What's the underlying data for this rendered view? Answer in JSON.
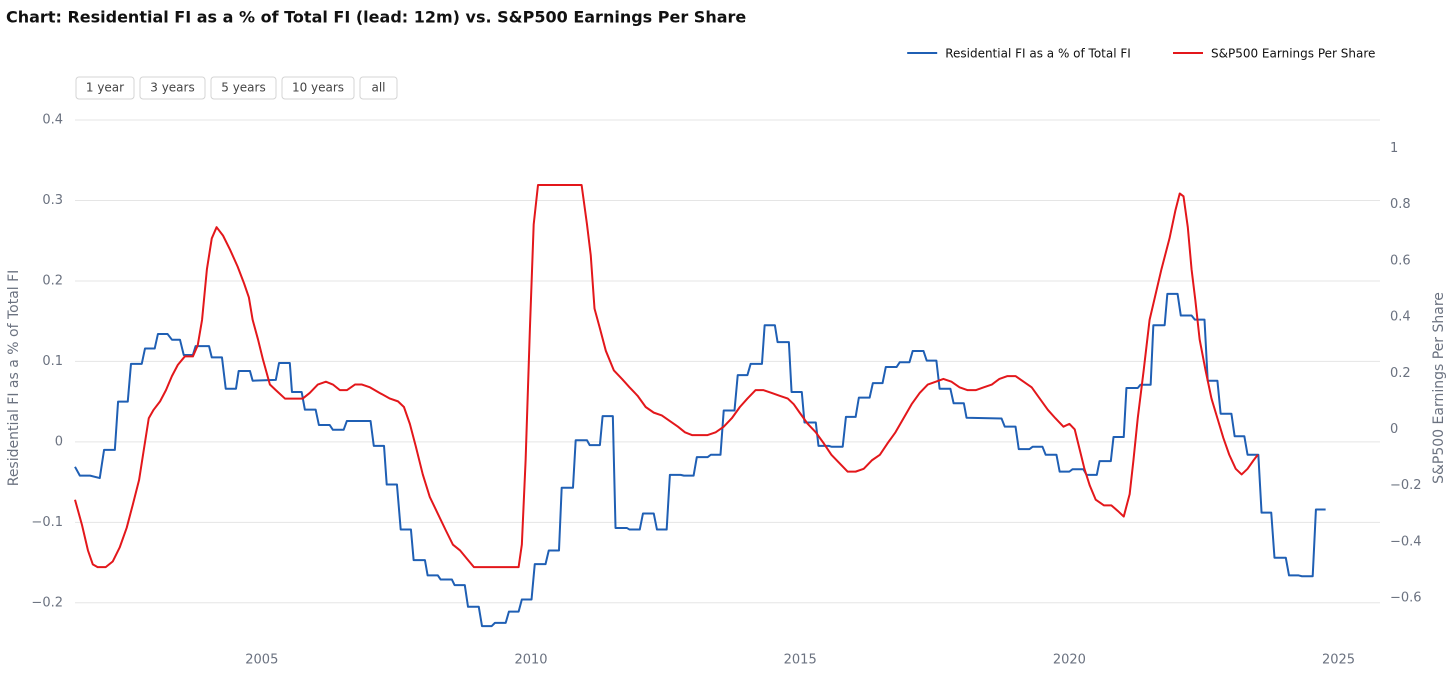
{
  "chart_data": {
    "type": "line",
    "title": "Chart: Residential FI as a % of Total FI (lead: 12m) vs. S&P500 Earnings Per Share",
    "y_label": "Residential FI as a % of Total FI",
    "y2_label": "S&P500 Earnings Per Share",
    "xlim": [
      2001.53,
      2025.77
    ],
    "xticks": [
      2005,
      2010,
      2015,
      2020,
      2025
    ],
    "ylim": [
      -0.25,
      0.41
    ],
    "yticks": [
      {
        "value": -0.2,
        "label": "−0.2"
      },
      {
        "value": -0.1,
        "label": "−0.1"
      },
      0,
      0.1,
      0.2,
      0.3,
      0.4
    ],
    "y2lim": [
      -0.76,
      1.13
    ],
    "y2ticks": [
      {
        "value": -0.6,
        "label": "−0.6"
      },
      {
        "value": -0.4,
        "label": "−0.4"
      },
      {
        "value": -0.2,
        "label": "−0.2"
      },
      0,
      0.2,
      0.4,
      0.6,
      0.8,
      1
    ],
    "grid": true,
    "legend": "top-right",
    "series": [
      {
        "name": "Residential FI as a % of Total FI",
        "color": "#1f5fb4",
        "axis": "y",
        "x": [
          2001.53,
          2001.62,
          2001.81,
          2001.99,
          2002.07,
          2002.27,
          2002.33,
          2002.51,
          2002.57,
          2002.77,
          2002.83,
          2003.01,
          2003.07,
          2003.25,
          2003.33,
          2003.48,
          2003.55,
          2003.72,
          2003.77,
          2004.02,
          2004.07,
          2004.26,
          2004.33,
          2004.52,
          2004.57,
          2004.78,
          2004.83,
          2005.26,
          2005.32,
          2005.52,
          2005.56,
          2005.74,
          2005.8,
          2006.0,
          2006.06,
          2006.26,
          2006.32,
          2006.52,
          2006.58,
          2007.02,
          2007.08,
          2007.27,
          2007.32,
          2007.51,
          2007.58,
          2007.77,
          2007.82,
          2008.03,
          2008.08,
          2008.27,
          2008.32,
          2008.53,
          2008.58,
          2008.77,
          2008.83,
          2009.03,
          2009.09,
          2009.27,
          2009.33,
          2009.53,
          2009.59,
          2009.77,
          2009.83,
          2010.01,
          2010.07,
          2010.27,
          2010.33,
          2010.52,
          2010.57,
          2010.78,
          2010.83,
          2011.04,
          2011.09,
          2011.28,
          2011.33,
          2011.52,
          2011.57,
          2011.78,
          2011.83,
          2012.02,
          2012.08,
          2012.28,
          2012.34,
          2012.52,
          2012.58,
          2012.78,
          2012.84,
          2013.02,
          2013.08,
          2013.28,
          2013.34,
          2013.52,
          2013.58,
          2013.78,
          2013.84,
          2014.02,
          2014.08,
          2014.29,
          2014.34,
          2014.53,
          2014.58,
          2014.79,
          2014.84,
          2015.03,
          2015.08,
          2015.29,
          2015.34,
          2015.53,
          2015.58,
          2015.79,
          2015.85,
          2016.03,
          2016.09,
          2016.29,
          2016.35,
          2016.53,
          2016.59,
          2016.79,
          2016.85,
          2017.03,
          2017.09,
          2017.29,
          2017.35,
          2017.53,
          2017.59,
          2017.79,
          2017.85,
          2018.04,
          2018.09,
          2018.74,
          2018.8,
          2019.0,
          2019.06,
          2019.26,
          2019.32,
          2019.5,
          2019.56,
          2019.76,
          2019.82,
          2020.0,
          2020.06,
          2020.26,
          2020.32,
          2020.51,
          2020.56,
          2020.77,
          2020.82,
          2021.01,
          2021.06,
          2021.27,
          2021.32,
          2021.51,
          2021.56,
          2021.77,
          2021.82,
          2022.01,
          2022.07,
          2022.27,
          2022.33,
          2022.51,
          2022.57,
          2022.75,
          2022.81,
          2023.01,
          2023.07,
          2023.25,
          2023.31,
          2023.51,
          2023.57,
          2023.75,
          2023.81,
          2024.02,
          2024.08,
          2024.26,
          2024.32,
          2024.52,
          2024.58,
          2024.76
        ],
        "values": [
          -0.031,
          -0.042,
          -0.042,
          -0.045,
          -0.01,
          -0.01,
          0.05,
          0.05,
          0.097,
          0.097,
          0.116,
          0.116,
          0.134,
          0.134,
          0.127,
          0.127,
          0.108,
          0.108,
          0.119,
          0.119,
          0.105,
          0.105,
          0.066,
          0.066,
          0.088,
          0.088,
          0.076,
          0.077,
          0.098,
          0.098,
          0.062,
          0.062,
          0.04,
          0.04,
          0.021,
          0.021,
          0.015,
          0.015,
          0.026,
          0.026,
          -0.005,
          -0.005,
          -0.053,
          -0.053,
          -0.109,
          -0.109,
          -0.147,
          -0.147,
          -0.166,
          -0.166,
          -0.171,
          -0.171,
          -0.178,
          -0.178,
          -0.205,
          -0.205,
          -0.229,
          -0.229,
          -0.225,
          -0.225,
          -0.211,
          -0.211,
          -0.196,
          -0.196,
          -0.152,
          -0.152,
          -0.135,
          -0.135,
          -0.057,
          -0.057,
          0.002,
          0.002,
          -0.004,
          -0.004,
          0.032,
          0.032,
          -0.107,
          -0.107,
          -0.109,
          -0.109,
          -0.089,
          -0.089,
          -0.109,
          -0.109,
          -0.041,
          -0.041,
          -0.042,
          -0.042,
          -0.019,
          -0.019,
          -0.016,
          -0.016,
          0.039,
          0.039,
          0.083,
          0.083,
          0.097,
          0.097,
          0.145,
          0.145,
          0.124,
          0.124,
          0.062,
          0.062,
          0.024,
          0.024,
          -0.005,
          -0.005,
          -0.006,
          -0.006,
          0.031,
          0.031,
          0.055,
          0.055,
          0.073,
          0.073,
          0.093,
          0.093,
          0.099,
          0.099,
          0.113,
          0.113,
          0.101,
          0.101,
          0.066,
          0.066,
          0.048,
          0.048,
          0.03,
          0.029,
          0.019,
          0.019,
          -0.009,
          -0.009,
          -0.006,
          -0.006,
          -0.016,
          -0.016,
          -0.037,
          -0.037,
          -0.034,
          -0.034,
          -0.041,
          -0.041,
          -0.024,
          -0.024,
          0.006,
          0.006,
          0.067,
          0.067,
          0.071,
          0.071,
          0.145,
          0.145,
          0.184,
          0.184,
          0.157,
          0.157,
          0.152,
          0.152,
          0.076,
          0.076,
          0.035,
          0.035,
          0.007,
          0.007,
          -0.016,
          -0.016,
          -0.088,
          -0.088,
          -0.144,
          -0.144,
          -0.166,
          -0.166,
          -0.167,
          -0.167,
          -0.084,
          -0.084
        ]
      },
      {
        "name": "S&P500 Earnings Per Share",
        "color": "#e3171b",
        "axis": "y2",
        "x": [
          2001.53,
          2001.66,
          2001.77,
          2001.86,
          2001.95,
          2002.1,
          2002.23,
          2002.36,
          2002.49,
          2002.6,
          2002.72,
          2002.81,
          2002.9,
          2002.99,
          2003.11,
          2003.22,
          2003.33,
          2003.44,
          2003.57,
          2003.72,
          2003.81,
          2003.89,
          2003.98,
          2004.07,
          2004.16,
          2004.28,
          2004.41,
          2004.55,
          2004.67,
          2004.76,
          2004.83,
          2004.93,
          2005.02,
          2005.15,
          2005.26,
          2005.43,
          2005.61,
          2005.76,
          2005.89,
          2006.04,
          2006.19,
          2006.32,
          2006.45,
          2006.58,
          2006.73,
          2006.86,
          2007.01,
          2007.19,
          2007.38,
          2007.53,
          2007.64,
          2007.75,
          2007.86,
          2007.99,
          2008.12,
          2008.27,
          2008.42,
          2008.55,
          2008.68,
          2008.81,
          2008.94,
          2009.23,
          2009.51,
          2009.77,
          2009.83,
          2009.9,
          2009.98,
          2010.05,
          2010.13,
          2010.53,
          2010.94,
          2011.04,
          2011.11,
          2011.18,
          2011.28,
          2011.39,
          2011.54,
          2011.69,
          2011.83,
          2011.98,
          2012.13,
          2012.28,
          2012.43,
          2012.58,
          2012.73,
          2012.86,
          2012.99,
          2013.13,
          2013.28,
          2013.43,
          2013.58,
          2013.73,
          2013.88,
          2014.02,
          2014.17,
          2014.32,
          2014.47,
          2014.62,
          2014.77,
          2014.88,
          2014.99,
          2015.14,
          2015.29,
          2015.44,
          2015.58,
          2015.73,
          2015.88,
          2016.03,
          2016.18,
          2016.33,
          2016.48,
          2016.62,
          2016.77,
          2016.92,
          2017.07,
          2017.22,
          2017.37,
          2017.52,
          2017.66,
          2017.81,
          2017.96,
          2018.11,
          2018.26,
          2018.41,
          2018.56,
          2018.7,
          2018.85,
          2019.0,
          2019.15,
          2019.3,
          2019.45,
          2019.6,
          2019.74,
          2019.89,
          2020.0,
          2020.1,
          2020.19,
          2020.28,
          2020.38,
          2020.49,
          2020.64,
          2020.78,
          2020.9,
          2021.01,
          2021.12,
          2021.19,
          2021.27,
          2021.38,
          2021.49,
          2021.6,
          2021.71,
          2021.86,
          2021.97,
          2022.05,
          2022.12,
          2022.2,
          2022.27,
          2022.34,
          2022.42,
          2022.53,
          2022.64,
          2022.75,
          2022.86,
          2022.97,
          2023.09,
          2023.2,
          2023.31,
          2023.42,
          2023.5
        ],
        "values": [
          -0.25,
          -0.34,
          -0.43,
          -0.48,
          -0.49,
          -0.49,
          -0.47,
          -0.42,
          -0.35,
          -0.27,
          -0.18,
          -0.07,
          0.04,
          0.07,
          0.1,
          0.14,
          0.19,
          0.23,
          0.26,
          0.26,
          0.3,
          0.39,
          0.57,
          0.68,
          0.72,
          0.69,
          0.64,
          0.58,
          0.52,
          0.47,
          0.39,
          0.32,
          0.25,
          0.16,
          0.14,
          0.11,
          0.11,
          0.11,
          0.13,
          0.16,
          0.17,
          0.16,
          0.14,
          0.14,
          0.16,
          0.16,
          0.15,
          0.13,
          0.11,
          0.1,
          0.08,
          0.02,
          -0.06,
          -0.16,
          -0.24,
          -0.3,
          -0.36,
          -0.41,
          -0.43,
          -0.46,
          -0.49,
          -0.49,
          -0.49,
          -0.49,
          -0.41,
          -0.11,
          0.36,
          0.73,
          0.87,
          0.87,
          0.87,
          0.73,
          0.62,
          0.43,
          0.36,
          0.28,
          0.21,
          0.18,
          0.15,
          0.12,
          0.08,
          0.06,
          0.05,
          0.03,
          0.01,
          -0.01,
          -0.02,
          -0.02,
          -0.02,
          -0.01,
          0.01,
          0.04,
          0.08,
          0.11,
          0.14,
          0.14,
          0.13,
          0.12,
          0.11,
          0.09,
          0.06,
          0.02,
          -0.01,
          -0.05,
          -0.09,
          -0.12,
          -0.15,
          -0.15,
          -0.14,
          -0.11,
          -0.09,
          -0.05,
          -0.01,
          0.04,
          0.09,
          0.13,
          0.16,
          0.17,
          0.18,
          0.17,
          0.15,
          0.14,
          0.14,
          0.15,
          0.16,
          0.18,
          0.19,
          0.19,
          0.17,
          0.15,
          0.11,
          0.07,
          0.04,
          0.01,
          0.02,
          0,
          -0.07,
          -0.14,
          -0.2,
          -0.25,
          -0.27,
          -0.27,
          -0.29,
          -0.31,
          -0.23,
          -0.11,
          0.04,
          0.21,
          0.39,
          0.48,
          0.57,
          0.68,
          0.78,
          0.84,
          0.83,
          0.72,
          0.57,
          0.46,
          0.32,
          0.21,
          0.11,
          0.04,
          -0.03,
          -0.09,
          -0.14,
          -0.16,
          -0.14,
          -0.11,
          -0.09
        ]
      }
    ]
  },
  "range_buttons": [
    "1 year",
    "3 years",
    "5 years",
    "10 years",
    "all"
  ]
}
